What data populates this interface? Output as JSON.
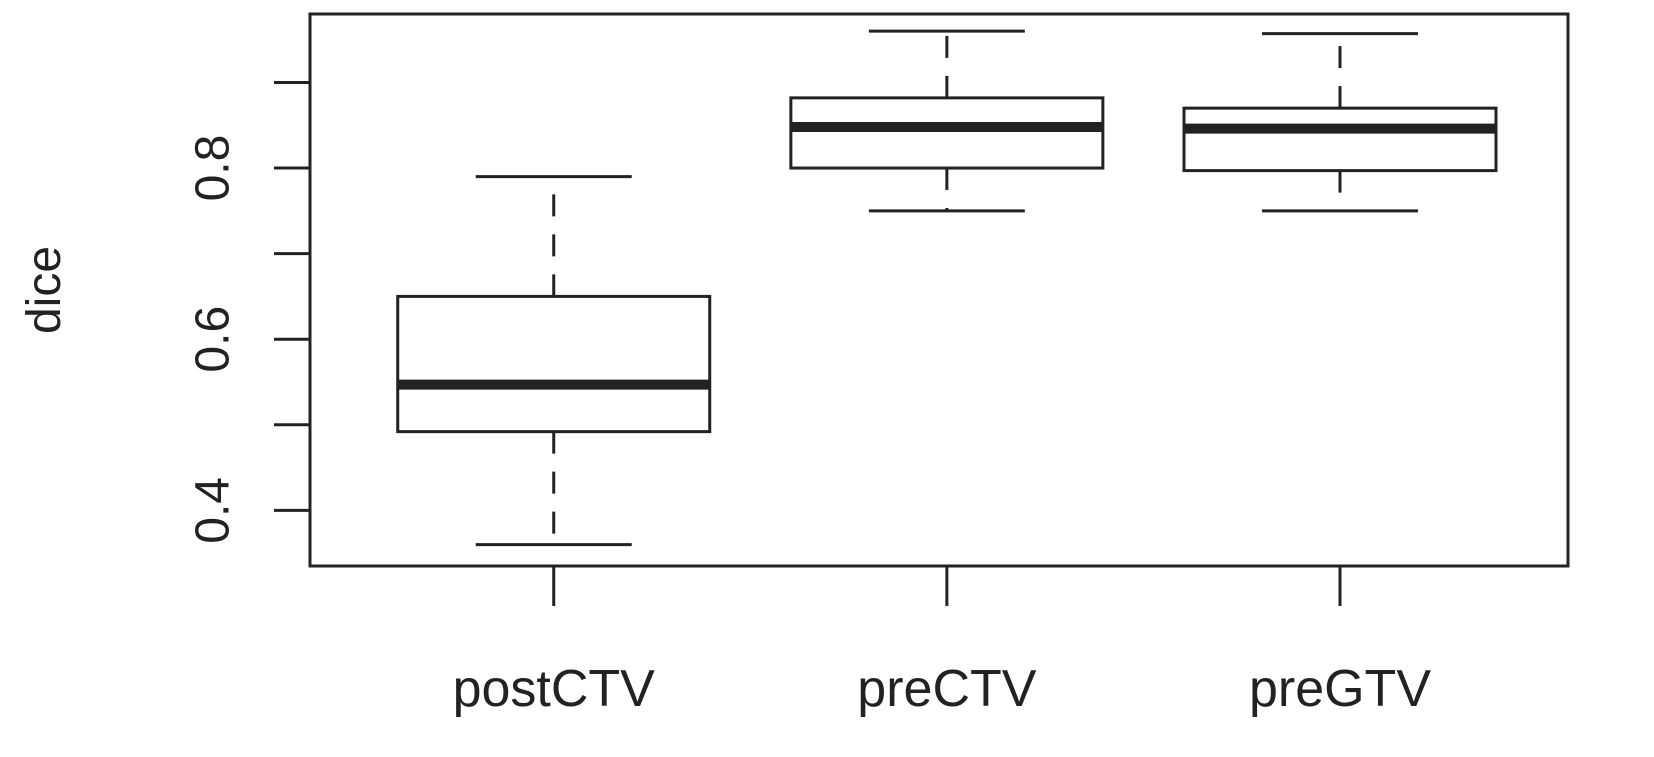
{
  "chart_data": {
    "type": "boxplot",
    "title": "",
    "xlabel": "",
    "ylabel": "dice",
    "ylim": [
      0.335,
      0.98
    ],
    "yticks": [
      0.4,
      0.5,
      0.6,
      0.7,
      0.8,
      0.9
    ],
    "ytick_labels": [
      "0.4",
      "",
      "0.6",
      "",
      "0.8",
      ""
    ],
    "grid": false,
    "categories": [
      "postCTV",
      "preCTV",
      "preGTV"
    ],
    "boxes": [
      {
        "whisker_low": 0.36,
        "q1": 0.492,
        "median": 0.547,
        "q3": 0.65,
        "whisker_high": 0.79
      },
      {
        "whisker_low": 0.75,
        "q1": 0.8,
        "median": 0.848,
        "q3": 0.882,
        "whisker_high": 0.96
      },
      {
        "whisker_low": 0.75,
        "q1": 0.797,
        "median": 0.846,
        "q3": 0.87,
        "whisker_high": 0.957
      }
    ],
    "colors": {
      "stroke": "#222222",
      "fill": "#ffffff"
    }
  }
}
